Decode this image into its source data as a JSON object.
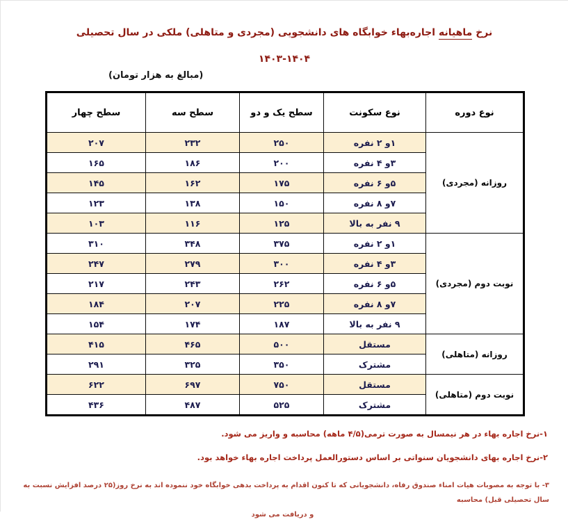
{
  "page": {
    "title_prefix": "نرخ",
    "title_underlined": "ماهیانه",
    "title_rest": "اجاره‌بهاء خوابگاه های دانشجویی (مجردی و متاهلی) ملکی در سال تحصیلی",
    "title_years": "۱۴۰۳-۱۴۰۴",
    "units_note": "(مبالغ به هزار تومان)"
  },
  "table": {
    "headers": [
      "نوع دوره",
      "نوع سکونت",
      "سطح یک و دو",
      "سطح سه",
      "سطح چهار"
    ],
    "sections": [
      {
        "period": "روزانه (مجردی)",
        "rows": [
          {
            "type": "۱و ۲ نفره",
            "values": [
              "۲۵۰",
              "۲۳۲",
              "۲۰۷"
            ],
            "highlight": true
          },
          {
            "type": "۳و ۴ نفره",
            "values": [
              "۲۰۰",
              "۱۸۶",
              "۱۶۵"
            ],
            "highlight": false
          },
          {
            "type": "۵و ۶ نفره",
            "values": [
              "۱۷۵",
              "۱۶۲",
              "۱۴۵"
            ],
            "highlight": true
          },
          {
            "type": "۷و ۸ نفره",
            "values": [
              "۱۵۰",
              "۱۳۸",
              "۱۲۳"
            ],
            "highlight": false
          },
          {
            "type": "۹ نفر به بالا",
            "values": [
              "۱۲۵",
              "۱۱۶",
              "۱۰۳"
            ],
            "highlight": true
          }
        ]
      },
      {
        "period": "نوبت دوم (مجردی)",
        "rows": [
          {
            "type": "۱و ۲ نفره",
            "values": [
              "۳۷۵",
              "۳۴۸",
              "۳۱۰"
            ],
            "highlight": false
          },
          {
            "type": "۳و ۴ نفره",
            "values": [
              "۳۰۰",
              "۲۷۹",
              "۲۴۷"
            ],
            "highlight": true
          },
          {
            "type": "۵و ۶ نفره",
            "values": [
              "۲۶۲",
              "۲۴۳",
              "۲۱۷"
            ],
            "highlight": false
          },
          {
            "type": "۷و ۸ نفره",
            "values": [
              "۲۲۵",
              "۲۰۷",
              "۱۸۴"
            ],
            "highlight": true
          },
          {
            "type": "۹ نفر به بالا",
            "values": [
              "۱۸۷",
              "۱۷۴",
              "۱۵۴"
            ],
            "highlight": false
          }
        ]
      },
      {
        "period": "روزانه (متاهلی)",
        "rows": [
          {
            "type": "مستقل",
            "values": [
              "۵۰۰",
              "۴۶۵",
              "۴۱۵"
            ],
            "highlight": true
          },
          {
            "type": "مشترک",
            "values": [
              "۳۵۰",
              "۳۲۵",
              "۲۹۱"
            ],
            "highlight": false
          }
        ]
      },
      {
        "period": "نوبت دوم (متاهلی)",
        "rows": [
          {
            "type": "مستقل",
            "values": [
              "۷۵۰",
              "۶۹۷",
              "۶۲۲"
            ],
            "highlight": true
          },
          {
            "type": "مشترک",
            "values": [
              "۵۲۵",
              "۴۸۷",
              "۴۳۶"
            ],
            "highlight": false
          }
        ]
      }
    ]
  },
  "footnotes": {
    "fn1": "۱-نرخ اجاره بهاء در هر نیمسال به صورت ترمی(۴/۵ ماهه) محاسبه و واریز می شود.",
    "fn2": "۲-نرخ اجاره بهای دانشجویان سنواتی بر اساس دستورالعمل پرداخت اجاره بهاء خواهد بود.",
    "fn3_line1": "۳- با توجه به مصوبات هیات امناء صندوق رفاه، دانشجویانی که تا کنون اقدام به پرداخت بدهی خوابگاه خود ننموده اند  به نرخ روز(۲۵ درصد افزایش نسبت به سال تحصیلی قبل) محاسبه",
    "fn3_line2": "و دریافت می شود"
  },
  "colors": {
    "title_red": "#8e1b12",
    "footnote_red": "#a5281a",
    "footnote3_red": "#ae4335",
    "highlight": "#fcefd2",
    "cell_text": "#1c1c4e",
    "border": "#000000"
  }
}
